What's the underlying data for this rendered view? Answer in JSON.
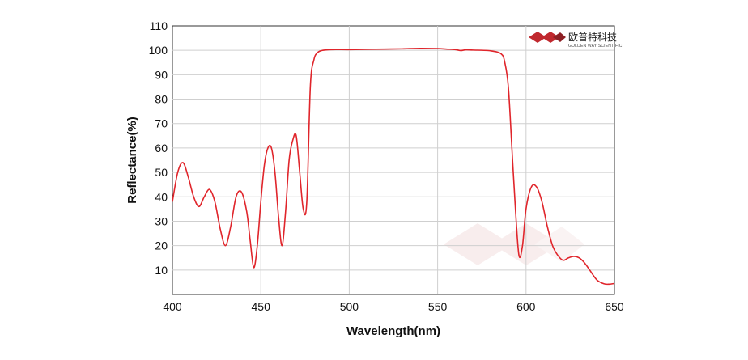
{
  "chart_data": {
    "type": "line",
    "title": "",
    "xlabel": "Wavelength(nm)",
    "ylabel": "Reflectance(%)",
    "xlim": [
      400,
      650
    ],
    "ylim": [
      0,
      110
    ],
    "x_ticks": [
      400,
      450,
      500,
      550,
      600,
      650
    ],
    "y_ticks": [
      10,
      20,
      30,
      40,
      50,
      60,
      70,
      80,
      90,
      100,
      110
    ],
    "grid": true,
    "legend": "none",
    "series": [
      {
        "color": "#e0252b",
        "x": [
          400,
          403,
          406,
          409,
          412,
          415,
          418,
          421,
          424,
          427,
          430,
          433,
          436,
          439,
          442,
          444,
          446,
          448,
          450,
          452,
          454,
          456,
          458,
          460,
          462,
          464,
          466,
          468,
          470,
          472,
          474,
          476,
          478,
          480,
          482,
          485,
          490,
          500,
          510,
          520,
          530,
          540,
          550,
          555,
          560,
          563,
          566,
          570,
          580,
          586,
          588,
          590,
          592,
          594,
          596,
          598,
          600,
          603,
          606,
          609,
          612,
          615,
          618,
          621,
          624,
          627,
          630,
          633,
          636,
          640,
          644,
          647,
          650
        ],
        "y": [
          38,
          50,
          54,
          48,
          40,
          36,
          40,
          43,
          38,
          27,
          20,
          28,
          40,
          42,
          34,
          22,
          11,
          20,
          38,
          53,
          60,
          60,
          50,
          32,
          20,
          34,
          55,
          63,
          65,
          50,
          35,
          38,
          85,
          96,
          99,
          100,
          100.3,
          100.3,
          100.4,
          100.5,
          100.6,
          100.8,
          100.7,
          100.5,
          100.3,
          99.9,
          100.2,
          100.1,
          99.8,
          98.5,
          95,
          85,
          60,
          35,
          16,
          20,
          35,
          44,
          44,
          38,
          28,
          20,
          16,
          14,
          15,
          15.6,
          15,
          13,
          10,
          6,
          4.4,
          4.2,
          4.5
        ]
      }
    ]
  },
  "logo": {
    "name_cn": "欧普特科技",
    "name_en": "GOLDEN WAY SCIENTIFIC"
  }
}
